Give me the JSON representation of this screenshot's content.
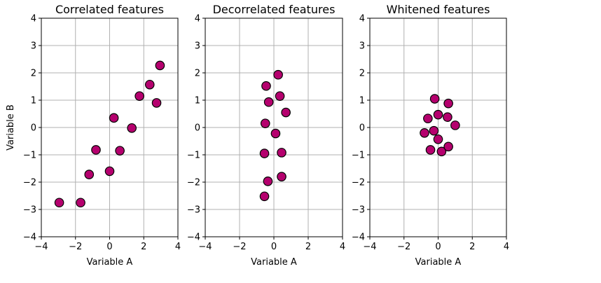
{
  "chart_data": [
    {
      "type": "scatter",
      "title": "Correlated features",
      "xlabel": "Variable A",
      "ylabel": "Variable B",
      "xlim": [
        -4,
        4
      ],
      "ylim": [
        -4,
        4
      ],
      "xticks": [
        "−4",
        "−2",
        "0",
        "2",
        "4"
      ],
      "yticks": [
        "−4",
        "−3",
        "−2",
        "−1",
        "0",
        "1",
        "2",
        "3",
        "4"
      ],
      "grid": true,
      "marker_color": "#b5006e",
      "points": [
        {
          "x": -2.95,
          "y": -2.75
        },
        {
          "x": -1.7,
          "y": -2.75
        },
        {
          "x": -1.2,
          "y": -1.72
        },
        {
          "x": -0.8,
          "y": -0.82
        },
        {
          "x": 0.0,
          "y": -1.6
        },
        {
          "x": 0.25,
          "y": 0.35
        },
        {
          "x": 0.6,
          "y": -0.85
        },
        {
          "x": 1.3,
          "y": -0.02
        },
        {
          "x": 1.75,
          "y": 1.15
        },
        {
          "x": 2.35,
          "y": 1.57
        },
        {
          "x": 2.75,
          "y": 0.9
        },
        {
          "x": 2.95,
          "y": 2.27
        }
      ]
    },
    {
      "type": "scatter",
      "title": "Decorrelated features",
      "xlabel": "Variable A",
      "ylabel": "",
      "xlim": [
        -4,
        4
      ],
      "ylim": [
        -4,
        4
      ],
      "xticks": [
        "−4",
        "−2",
        "0",
        "2",
        "4"
      ],
      "yticks": [
        "−4",
        "−3",
        "−2",
        "−1",
        "0",
        "1",
        "2",
        "3",
        "4"
      ],
      "grid": true,
      "marker_color": "#b5006e",
      "points": [
        {
          "x": -0.55,
          "y": -2.52
        },
        {
          "x": -0.35,
          "y": -1.97
        },
        {
          "x": 0.45,
          "y": -1.8
        },
        {
          "x": -0.55,
          "y": -0.95
        },
        {
          "x": 0.45,
          "y": -0.92
        },
        {
          "x": 0.1,
          "y": -0.22
        },
        {
          "x": -0.5,
          "y": 0.15
        },
        {
          "x": 0.7,
          "y": 0.55
        },
        {
          "x": -0.3,
          "y": 0.93
        },
        {
          "x": 0.35,
          "y": 1.15
        },
        {
          "x": -0.45,
          "y": 1.52
        },
        {
          "x": 0.25,
          "y": 1.93
        }
      ]
    },
    {
      "type": "scatter",
      "title": "Whitened features",
      "xlabel": "Variable A",
      "ylabel": "",
      "xlim": [
        -4,
        4
      ],
      "ylim": [
        -4,
        4
      ],
      "xticks": [
        "−4",
        "−2",
        "0",
        "2",
        "4"
      ],
      "yticks": [
        "−4",
        "−3",
        "−2",
        "−1",
        "0",
        "1",
        "2",
        "3",
        "4"
      ],
      "grid": true,
      "marker_color": "#b5006e",
      "points": [
        {
          "x": -0.2,
          "y": 1.05
        },
        {
          "x": 0.6,
          "y": 0.88
        },
        {
          "x": -0.6,
          "y": 0.33
        },
        {
          "x": 0.0,
          "y": 0.47
        },
        {
          "x": 0.55,
          "y": 0.38
        },
        {
          "x": 1.0,
          "y": 0.08
        },
        {
          "x": -0.8,
          "y": -0.2
        },
        {
          "x": -0.25,
          "y": -0.12
        },
        {
          "x": 0.0,
          "y": -0.43
        },
        {
          "x": -0.45,
          "y": -0.82
        },
        {
          "x": 0.2,
          "y": -0.88
        },
        {
          "x": 0.6,
          "y": -0.7
        }
      ]
    }
  ]
}
